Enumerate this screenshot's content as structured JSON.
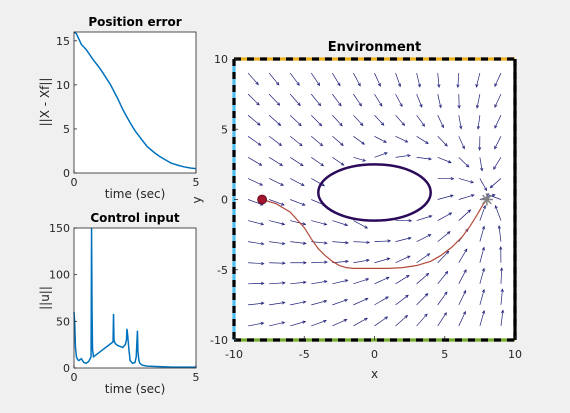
{
  "chart_data": [
    {
      "id": "position-error",
      "type": "line",
      "title": "Position error",
      "xlabel": "time (sec)",
      "ylabel": "||X - Xf||",
      "xlim": [
        0,
        5
      ],
      "ylim": [
        0,
        16
      ],
      "xticks": [
        0,
        5
      ],
      "yticks": [
        0,
        5,
        10,
        15
      ],
      "color": "#0072bd",
      "series": [
        {
          "x": [
            0,
            0.1,
            0.2,
            0.3,
            0.5,
            0.8,
            1.0,
            1.2,
            1.5,
            1.8,
            2.0,
            2.3,
            2.5,
            2.8,
            3.0,
            3.3,
            3.5,
            3.8,
            4.0,
            4.3,
            4.5,
            4.8,
            5.0
          ],
          "y": [
            16,
            15.8,
            15.2,
            14.6,
            14.0,
            12.8,
            12.1,
            11.3,
            10.0,
            8.4,
            7.2,
            5.7,
            4.8,
            3.7,
            3.0,
            2.3,
            1.9,
            1.4,
            1.1,
            0.85,
            0.7,
            0.55,
            0.5
          ]
        }
      ]
    },
    {
      "id": "control-input",
      "type": "line",
      "title": "Control input",
      "xlabel": "time (sec)",
      "ylabel": "||u||",
      "xlim": [
        0,
        5
      ],
      "ylim": [
        0,
        150
      ],
      "xticks": [
        0,
        5
      ],
      "yticks": [
        0,
        50,
        100,
        150
      ],
      "color": "#0072bd",
      "series": [
        {
          "x": [
            0,
            0.03,
            0.06,
            0.1,
            0.15,
            0.2,
            0.3,
            0.4,
            0.5,
            0.6,
            0.7,
            0.72,
            0.74,
            0.76,
            0.8,
            0.9,
            1.0,
            1.2,
            1.4,
            1.5,
            1.6,
            1.62,
            1.64,
            1.66,
            1.7,
            1.8,
            2.0,
            2.1,
            2.15,
            2.17,
            2.2,
            2.25,
            2.3,
            2.4,
            2.5,
            2.55,
            2.6,
            2.62,
            2.66,
            2.7,
            2.8,
            3.0,
            3.5,
            4.0,
            4.5,
            5.0
          ],
          "y": [
            60,
            48,
            22,
            12,
            9,
            8,
            10,
            6,
            5,
            7,
            12,
            150,
            60,
            20,
            12,
            14,
            16,
            20,
            24,
            26,
            28,
            58,
            30,
            28,
            26,
            24,
            22,
            25,
            30,
            42,
            35,
            20,
            8,
            5,
            6,
            12,
            40,
            18,
            8,
            5,
            3,
            2,
            1.5,
            1,
            1,
            1
          ]
        }
      ]
    },
    {
      "id": "environment",
      "type": "scatter",
      "title": "Environment",
      "xlabel": "x",
      "ylabel": "y",
      "xlim": [
        -10,
        10
      ],
      "ylim": [
        -10,
        10
      ],
      "xticks": [
        -10,
        -5,
        0,
        5,
        10
      ],
      "yticks": [
        -10,
        -5,
        0,
        5,
        10
      ],
      "start": {
        "x": -8,
        "y": 0,
        "color": "#a2142f"
      },
      "goal": {
        "x": 8,
        "y": 0,
        "color": "#808080"
      },
      "obstacle": {
        "cx": 0,
        "cy": 0.5,
        "rx": 4,
        "ry": 2,
        "color": "#2b0a5a"
      },
      "trajectory": {
        "color": "#b34a3a",
        "x": [
          -8,
          -7,
          -6,
          -5,
          -4.5,
          -4,
          -3.5,
          -3,
          -2.5,
          -2,
          -1.5,
          -1,
          0,
          1,
          2,
          3,
          4,
          4.7,
          5.5,
          6.2,
          6.8,
          7.3,
          7.7,
          8
        ],
        "y": [
          0,
          -0.3,
          -0.9,
          -2.0,
          -2.8,
          -3.5,
          -4.0,
          -4.4,
          -4.7,
          -4.85,
          -4.9,
          -4.9,
          -4.9,
          -4.9,
          -4.85,
          -4.7,
          -4.4,
          -4.0,
          -3.4,
          -2.7,
          -1.9,
          -1.1,
          -0.4,
          0
        ]
      },
      "boundary_colors": {
        "top": [
          "#edb120",
          "#000000"
        ],
        "bottom": [
          "#77ac30",
          "#000000"
        ],
        "left": [
          "#4dbeee",
          "#000000"
        ],
        "right": [
          "#000000",
          "#000000"
        ]
      },
      "vector_field": {
        "grid_step": 1.5,
        "range": [
          -9,
          9
        ],
        "color": "#1f1f7a"
      }
    }
  ]
}
